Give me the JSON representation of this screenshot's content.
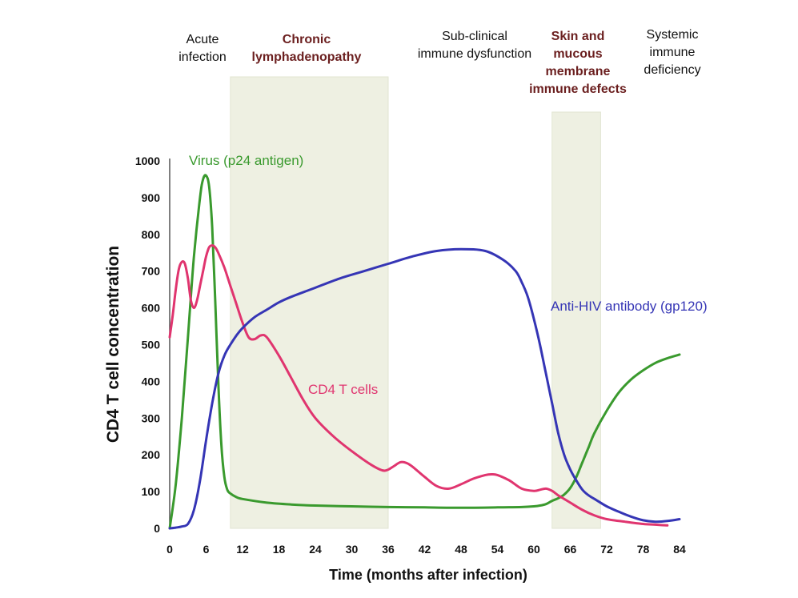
{
  "chart_data": {
    "type": "line",
    "xlabel": "Time (months after infection)",
    "ylabel": "CD4 T cell concentration",
    "xlim": [
      0,
      84
    ],
    "ylim": [
      0,
      1000
    ],
    "x_ticks": [
      "0",
      "6",
      "12",
      "18",
      "24",
      "30",
      "36",
      "42",
      "48",
      "54",
      "60",
      "66",
      "72",
      "78",
      "84"
    ],
    "y_ticks": [
      "0",
      "100",
      "200",
      "300",
      "400",
      "500",
      "600",
      "700",
      "800",
      "900",
      "1000"
    ],
    "grid": false,
    "colors": {
      "virus": "#3a9a2e",
      "cd4": "#e0356f",
      "antibody": "#3535b5",
      "band": "#eef0e2",
      "phase_dark": "#111111",
      "phase_red": "#6b1f1f"
    },
    "phases": [
      {
        "lines": [
          "Acute",
          "infection"
        ],
        "color": "#111111"
      },
      {
        "lines": [
          "Chronic",
          "lymphadenopathy"
        ],
        "color": "#6b1f1f"
      },
      {
        "lines": [
          "Sub-clinical",
          "immune dysfunction"
        ],
        "color": "#111111"
      },
      {
        "lines": [
          "Skin and",
          "mucous",
          "membrane",
          "immune defects"
        ],
        "color": "#6b1f1f"
      },
      {
        "lines": [
          "Systemic",
          "immune",
          "deficiency"
        ],
        "color": "#111111"
      }
    ],
    "bands": [
      {
        "x0": 10,
        "x1": 36
      },
      {
        "x0": 63,
        "x1": 71
      }
    ],
    "series": [
      {
        "name": "Virus (p24 antigen)",
        "x": [
          0,
          1,
          2,
          3,
          4,
          5,
          5.5,
          6,
          6.5,
          7,
          7.5,
          8,
          8.5,
          9,
          9.5,
          10,
          11,
          12,
          16,
          20,
          24,
          30,
          36,
          42,
          48,
          54,
          58,
          60,
          61,
          62,
          63,
          64,
          65,
          66,
          67,
          68,
          69,
          70,
          72,
          74,
          76,
          78,
          80,
          82,
          84
        ],
        "y": [
          0,
          120,
          300,
          520,
          740,
          900,
          950,
          960,
          930,
          820,
          620,
          400,
          230,
          140,
          105,
          95,
          85,
          80,
          70,
          65,
          62,
          60,
          58,
          57,
          56,
          57,
          58,
          60,
          62,
          66,
          75,
          82,
          92,
          110,
          140,
          180,
          220,
          260,
          320,
          370,
          405,
          430,
          450,
          463,
          473
        ]
      },
      {
        "name": "CD4 T cells",
        "x": [
          0,
          0.5,
          1,
          1.5,
          2,
          2.5,
          3,
          3.5,
          4,
          4.5,
          5,
          5.5,
          6,
          6.5,
          7,
          7.5,
          8,
          9,
          10,
          11,
          12,
          13,
          14,
          15,
          16,
          18,
          20,
          22,
          24,
          27,
          30,
          33,
          35,
          36,
          37,
          38,
          39,
          40,
          42,
          44,
          46,
          48,
          50,
          52,
          53,
          54,
          56,
          58,
          60,
          61,
          62,
          63,
          64,
          65,
          66,
          68,
          70,
          72,
          75,
          78,
          80,
          82
        ],
        "y": [
          520,
          580,
          650,
          705,
          725,
          720,
          680,
          620,
          600,
          620,
          660,
          700,
          740,
          765,
          770,
          765,
          750,
          710,
          660,
          610,
          560,
          520,
          515,
          525,
          520,
          470,
          410,
          350,
          300,
          250,
          210,
          175,
          158,
          160,
          170,
          180,
          178,
          168,
          140,
          115,
          108,
          120,
          135,
          145,
          147,
          145,
          130,
          108,
          102,
          105,
          108,
          102,
          90,
          80,
          70,
          50,
          35,
          25,
          18,
          12,
          10,
          8
        ]
      },
      {
        "name": "Anti-HIV antibody (gp120)",
        "x": [
          0,
          1,
          2,
          3,
          4,
          5,
          6,
          7,
          8,
          9,
          10,
          11,
          12,
          14,
          16,
          18,
          20,
          24,
          28,
          32,
          36,
          40,
          44,
          48,
          52,
          55,
          57,
          58,
          59,
          60,
          61,
          62,
          63,
          64,
          65,
          66,
          67,
          68,
          69,
          70,
          72,
          74,
          76,
          78,
          80,
          82,
          84
        ],
        "y": [
          0,
          2,
          5,
          12,
          50,
          130,
          240,
          340,
          420,
          470,
          500,
          525,
          545,
          575,
          595,
          615,
          630,
          655,
          680,
          700,
          720,
          740,
          755,
          760,
          755,
          730,
          700,
          670,
          630,
          570,
          500,
          420,
          340,
          260,
          200,
          160,
          130,
          105,
          90,
          80,
          60,
          45,
          32,
          22,
          18,
          20,
          25
        ]
      }
    ]
  }
}
